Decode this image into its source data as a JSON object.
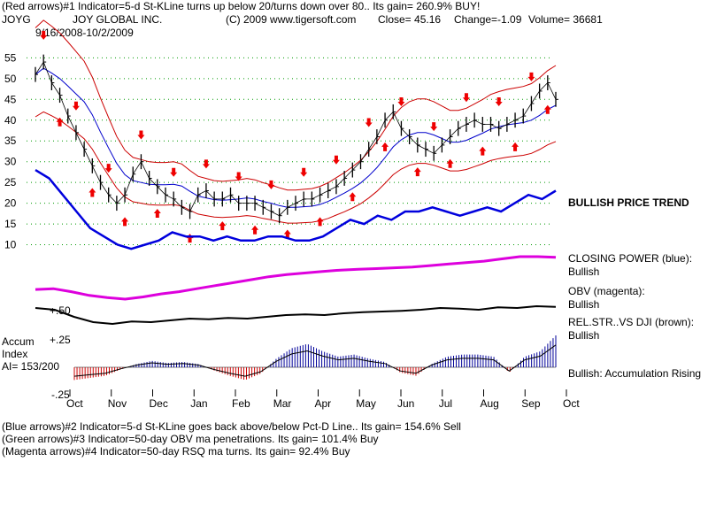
{
  "header": {
    "line1": "(Red arrows)#1 Indicator=5-d St-KLine turns up below 20/turns down over 80.. Its gain= 260.9% BUY!",
    "ticker": "JOYG",
    "company": "JOY GLOBAL INC.",
    "source": "(C) 2009 www.tigersoft.com",
    "close": "Close=  45.16",
    "change": "Change=-1.09",
    "volume": "Volume=  36681",
    "date_range": "9/16/2008-10/2/2009"
  },
  "labels": {
    "price_trend": "BULLISH PRICE TREND",
    "closing_power_title": "CLOSING POWER (blue):",
    "closing_power_value": "Bullish",
    "obv_title": "OBV (magenta):",
    "obv_value": "Bullish",
    "relstr_title": "REL.STR..VS DJI (brown):",
    "relstr_value": "Bullish",
    "accum_title": "Bullish: Accumulation Rising",
    "accum_index_1": "Accum",
    "accum_index_2": "Index",
    "accum_index_3": "AI= 153/200",
    "plus50": "+.50",
    "plus25": "+.25",
    "minus25": "-.25"
  },
  "footer": {
    "line1": "(Blue arrows)#2 Indicator=5-d St-KLine goes back above/below Pct-D Line.. Its gain= 154.6% Sell",
    "line2": "(Green arrows)#3 Indicator=50-day OBV ma penetrations. Its gain= 101.4% Buy",
    "line3": "(Magenta arrows)#4 Indicator=50-day RSQ ma turns. Its gain= 92.4% Buy"
  },
  "colors": {
    "price": "#000000",
    "bands": "#cc0000",
    "ma": "#0000cc",
    "closing_power": "#0000dd",
    "obv": "#dd00dd",
    "relstr": "#000000",
    "accum_pos": "#000099",
    "accum_neg": "#cc0000",
    "arrows": "#ee0000",
    "grid": "#009900"
  },
  "chart_data": {
    "type": "line",
    "ylim": [
      5,
      57
    ],
    "y_ticks": [
      "55",
      "50",
      "45",
      "40",
      "35",
      "30",
      "25",
      "20",
      "15",
      "10"
    ],
    "x_ticks": [
      "Oct",
      "Nov",
      "Dec",
      "Jan",
      "Feb",
      "Mar",
      "Apr",
      "May",
      "Jun",
      "Jul",
      "Aug",
      "Sep",
      "Oct"
    ],
    "series": [
      {
        "values": [
          51,
          54,
          49,
          46,
          41,
          37,
          33,
          29,
          25,
          22,
          20,
          22,
          27,
          30,
          26,
          24,
          22,
          21,
          19,
          18,
          22,
          23,
          21,
          21,
          22,
          20,
          20,
          20,
          19,
          18,
          17,
          19,
          20,
          21,
          21,
          22,
          23,
          24,
          26,
          28,
          30,
          33,
          36,
          40,
          42,
          38,
          36,
          34,
          33,
          32,
          34,
          36,
          38,
          39,
          40,
          39,
          39,
          38,
          39,
          40,
          41,
          44,
          47,
          49,
          45
        ]
      },
      {
        "name": "Closing Power",
        "values": [
          28,
          26,
          22,
          18,
          14,
          12,
          10,
          9,
          10,
          11,
          13,
          12,
          12,
          11,
          12,
          11,
          11,
          12,
          12,
          11,
          11,
          12,
          14,
          16,
          15,
          17,
          16,
          18,
          18,
          19,
          18,
          17,
          18,
          19,
          18,
          20,
          22,
          21,
          23
        ]
      },
      {
        "name": "OBV",
        "values": [
          6.8,
          6.9,
          6.5,
          6.0,
          5.7,
          5.5,
          5.8,
          6.2,
          6.5,
          6.9,
          7.3,
          7.7,
          8.1,
          8.5,
          8.8,
          9.0,
          9.2,
          9.4,
          9.5,
          9.6,
          9.7,
          9.8,
          10.0,
          10.2,
          10.4,
          10.6,
          10.9,
          11.2,
          11.2,
          11.1
        ]
      },
      {
        "name": "Rel.Str. vs DJI",
        "values": [
          0.6,
          0.55,
          0.35,
          0.2,
          0.15,
          0.22,
          0.2,
          0.25,
          0.3,
          0.28,
          0.32,
          0.3,
          0.35,
          0.4,
          0.42,
          0.4,
          0.45,
          0.48,
          0.5,
          0.52,
          0.55,
          0.6,
          0.58,
          0.55,
          0.62,
          0.6,
          0.65,
          0.63
        ]
      },
      {
        "name": "Accumulation Index",
        "values": [
          -0.12,
          -0.1,
          -0.08,
          -0.02,
          0.03,
          0.06,
          0.04,
          0.05,
          0.03,
          -0.03,
          -0.08,
          -0.12,
          -0.06,
          0.08,
          0.18,
          0.22,
          0.15,
          0.1,
          0.12,
          0.08,
          0.05,
          -0.05,
          -0.08,
          0.03,
          0.1,
          0.12,
          0.12,
          0.1,
          -0.05,
          0.1,
          0.15,
          0.3
        ]
      }
    ]
  }
}
